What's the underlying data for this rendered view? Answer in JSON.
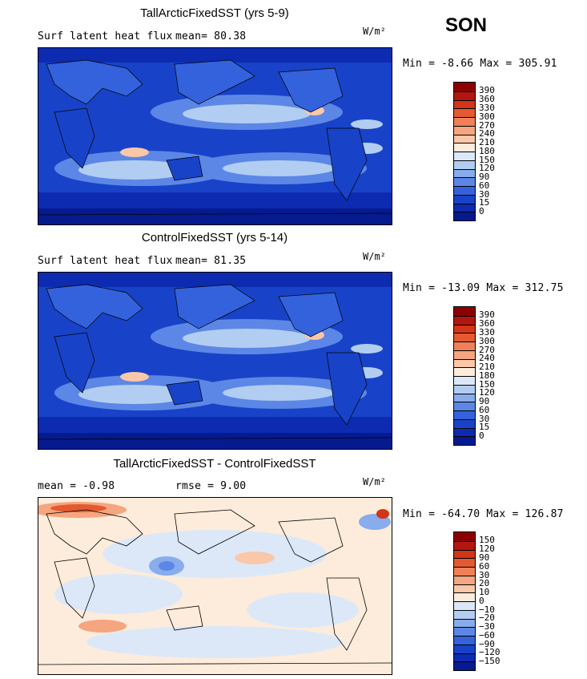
{
  "season": "SON",
  "units": "W/m²",
  "panels": [
    {
      "title": "TallArcticFixedSST (yrs 5-9)",
      "left_text": "Surf latent heat flux",
      "mean_text": "mean=  80.38",
      "minmax": "Min =  -8.66 Max = 305.91",
      "colorbar": {
        "labels": [
          "390",
          "360",
          "330",
          "300",
          "270",
          "240",
          "210",
          "180",
          "150",
          "120",
          "90",
          "60",
          "30",
          "15",
          "0"
        ],
        "colors": [
          "#8b0000",
          "#b3160e",
          "#d23517",
          "#e35a30",
          "#f08058",
          "#f5a57f",
          "#fac7a9",
          "#fdecdb",
          "#dce8f8",
          "#b2cdf2",
          "#88acec",
          "#5c87e6",
          "#3362dc",
          "#1843c8",
          "#0c2bb0",
          "#061a8f"
        ]
      }
    },
    {
      "title": "ControlFixedSST (yrs 5-14)",
      "left_text": "Surf latent heat flux",
      "mean_text": "mean=  81.35",
      "minmax": "Min = -13.09 Max = 312.75",
      "colorbar": {
        "labels": [
          "390",
          "360",
          "330",
          "300",
          "270",
          "240",
          "210",
          "180",
          "150",
          "120",
          "90",
          "60",
          "30",
          "15",
          "0"
        ],
        "colors": [
          "#8b0000",
          "#b3160e",
          "#d23517",
          "#e35a30",
          "#f08058",
          "#f5a57f",
          "#fac7a9",
          "#fdecdb",
          "#dce8f8",
          "#b2cdf2",
          "#88acec",
          "#5c87e6",
          "#3362dc",
          "#1843c8",
          "#0c2bb0",
          "#061a8f"
        ]
      }
    },
    {
      "title": "TallArcticFixedSST - ControlFixedSST",
      "left_text": "mean =  -0.98",
      "mean_text": "rmse =   9.00",
      "minmax": "Min = -64.70 Max = 126.87",
      "colorbar": {
        "labels": [
          "150",
          "120",
          "90",
          "60",
          "30",
          "20",
          "10",
          "0",
          "−10",
          "−20",
          "−30",
          "−60",
          "−90",
          "−120",
          "−150"
        ],
        "colors": [
          "#8b0000",
          "#b3160e",
          "#d23517",
          "#e35a30",
          "#f08058",
          "#f5a57f",
          "#fac7a9",
          "#fdecdb",
          "#dce8f8",
          "#b2cdf2",
          "#88acec",
          "#5c87e6",
          "#3362dc",
          "#1843c8",
          "#0c2bb0",
          "#061a8f"
        ]
      }
    }
  ]
}
